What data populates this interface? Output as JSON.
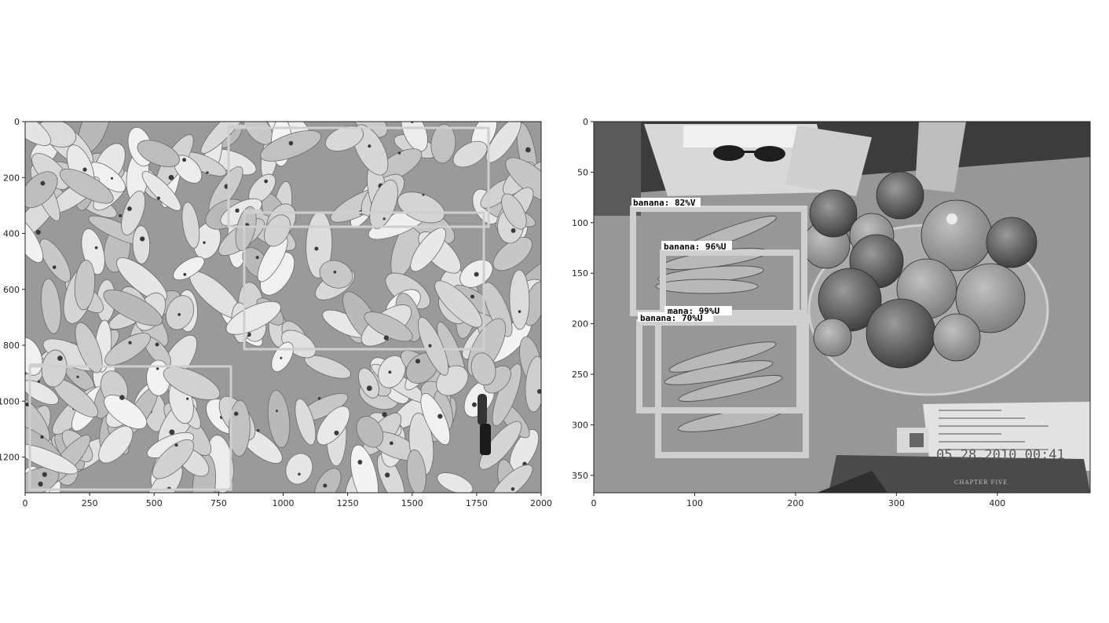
{
  "left_panel": {
    "x_ticks": [
      "0",
      "250",
      "500",
      "750",
      "1000",
      "1250",
      "1500",
      "1750",
      "2000"
    ],
    "y_ticks": [
      "0",
      "200",
      "400",
      "600",
      "800",
      "1000",
      "1200"
    ],
    "boxes": [
      {
        "color": "#d4d4d4"
      },
      {
        "color": "#d4d4d4"
      },
      {
        "color": "#d4d4d4"
      }
    ]
  },
  "right_panel": {
    "x_ticks": [
      "0",
      "100",
      "200",
      "300",
      "400"
    ],
    "y_ticks": [
      "0",
      "50",
      "100",
      "150",
      "200",
      "250",
      "300",
      "350"
    ],
    "detections": [
      {
        "label": "banana:  82%V"
      },
      {
        "label": "banana:  96%U"
      },
      {
        "label": "mana:  99%U"
      },
      {
        "label": "banana:  70%U"
      }
    ],
    "timestamp": "05.28.2010 00:41",
    "book_text": "CHAPTER FIVE"
  },
  "colors": {
    "box": "#d0d0d0",
    "axis": "#222222"
  }
}
